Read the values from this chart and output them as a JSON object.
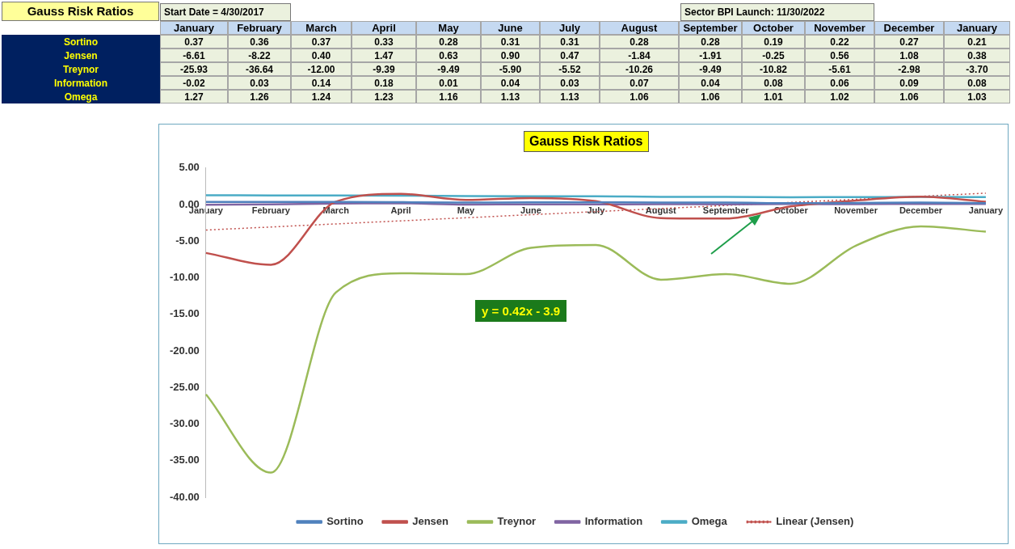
{
  "chart_data": {
    "type": "line",
    "title": "Gauss Risk Ratios",
    "categories": [
      "January",
      "February",
      "March",
      "April",
      "May",
      "June",
      "July",
      "August",
      "September",
      "October",
      "November",
      "December",
      "January"
    ],
    "series": [
      {
        "name": "Sortino",
        "color": "#4f81bd",
        "values": [
          0.37,
          0.36,
          0.37,
          0.33,
          0.28,
          0.31,
          0.31,
          0.28,
          0.28,
          0.19,
          0.22,
          0.27,
          0.21
        ],
        "value_labels": [
          "0.37",
          "0.36",
          "0.37",
          "0.33",
          "0.28",
          "0.31",
          "0.31",
          "0.28",
          "0.28",
          "0.19",
          "0.22",
          "0.27",
          "0.21"
        ]
      },
      {
        "name": "Jensen",
        "color": "#c0504d",
        "values": [
          -6.61,
          -8.22,
          0.4,
          1.47,
          0.63,
          0.9,
          0.47,
          -1.84,
          -1.91,
          -0.25,
          0.56,
          1.08,
          0.38
        ],
        "value_labels": [
          "-6.61",
          "-8.22",
          "0.40",
          "1.47",
          "0.63",
          "0.90",
          "0.47",
          "-1.84",
          "-1.91",
          "-0.25",
          "0.56",
          "1.08",
          "0.38"
        ]
      },
      {
        "name": "Treynor",
        "color": "#9bbb59",
        "values": [
          -25.93,
          -36.64,
          -12.0,
          -9.39,
          -9.49,
          -5.9,
          -5.52,
          -10.26,
          -9.49,
          -10.82,
          -5.61,
          -2.98,
          -3.7
        ],
        "value_labels": [
          "-25.93",
          "-36.64",
          "-12.00",
          "-9.39",
          "-9.49",
          "-5.90",
          "-5.52",
          "-10.26",
          "-9.49",
          "-10.82",
          "-5.61",
          "-2.98",
          "-3.70"
        ]
      },
      {
        "name": "Information",
        "color": "#8064a2",
        "values": [
          -0.02,
          0.03,
          0.14,
          0.18,
          0.01,
          0.04,
          0.03,
          0.07,
          0.04,
          0.08,
          0.06,
          0.09,
          0.08
        ],
        "value_labels": [
          "-0.02",
          "0.03",
          "0.14",
          "0.18",
          "0.01",
          "0.04",
          "0.03",
          "0.07",
          "0.04",
          "0.08",
          "0.06",
          "0.09",
          "0.08"
        ]
      },
      {
        "name": "Omega",
        "color": "#4bacc6",
        "values": [
          1.27,
          1.26,
          1.24,
          1.23,
          1.16,
          1.13,
          1.13,
          1.06,
          1.06,
          1.01,
          1.02,
          1.06,
          1.03
        ],
        "value_labels": [
          "1.27",
          "1.26",
          "1.24",
          "1.23",
          "1.16",
          "1.13",
          "1.13",
          "1.06",
          "1.06",
          "1.01",
          "1.02",
          "1.06",
          "1.03"
        ]
      },
      {
        "name": "Linear (Jensen)",
        "color": "#c0504d",
        "line_style": "dotted",
        "values": [
          -3.48,
          -3.06,
          -2.64,
          -2.22,
          -1.8,
          -1.38,
          -0.96,
          -0.54,
          -0.12,
          0.3,
          0.72,
          1.14,
          1.56
        ]
      }
    ],
    "ylim": [
      -40,
      5
    ],
    "yticks": [
      {
        "value": -40,
        "label": "-40.00"
      },
      {
        "value": -35,
        "label": "-35.00"
      },
      {
        "value": -30,
        "label": "-30.00"
      },
      {
        "value": -25,
        "label": "-25.00"
      },
      {
        "value": -20,
        "label": "-20.00"
      },
      {
        "value": -15,
        "label": "-15.00"
      },
      {
        "value": -10,
        "label": "-10.00"
      },
      {
        "value": -5,
        "label": "-5.00"
      },
      {
        "value": 0,
        "label": "0.00"
      },
      {
        "value": 5,
        "label": "5.00"
      }
    ],
    "grid": false,
    "legend": "bottom",
    "marker": "none",
    "line_style": "solid",
    "annotations": [
      "Gauss Risk Ratios",
      "Start Date = 4/30/2017",
      "Sector BPI Launch: 11/30/2022",
      "y = 0.42x - 3.9"
    ]
  }
}
